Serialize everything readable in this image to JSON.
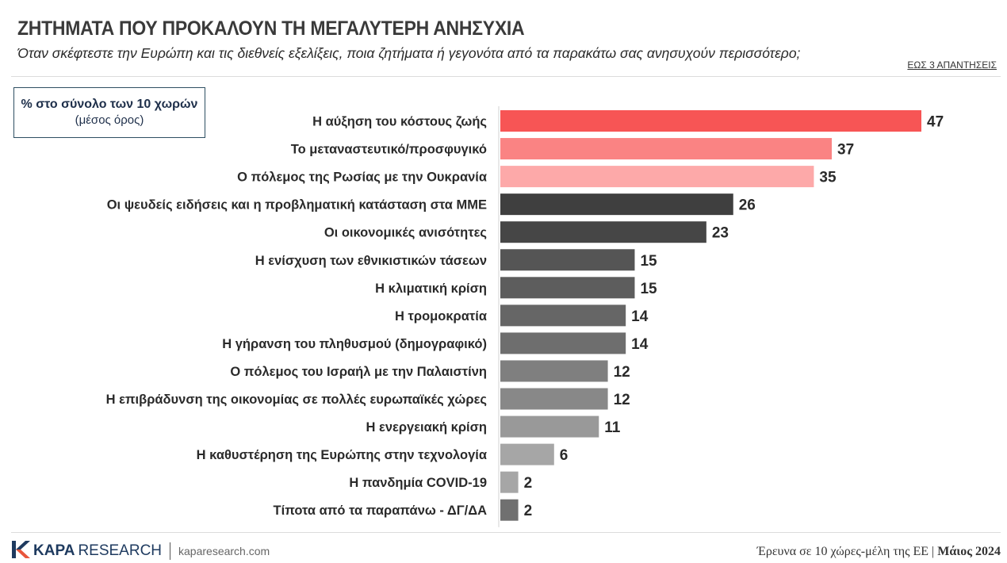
{
  "header": {
    "title": "ΖΗΤΗΜΑΤΑ ΠΟΥ ΠΡΟΚΑΛΟΥΝ ΤΗ ΜΕΓΑΛΥΤΕΡΗ ΑΝΗΣΥΧΙΑ",
    "subtitle": "Όταν σκέφτεστε την Ευρώπη και τις διεθνείς εξελίξεις, ποια ζητήματα ή γεγονότα από τα παρακάτω σας ανησυχούν περισσότερο;",
    "note": "ΕΩΣ 3 ΑΠΑΝΤΗΣΕΙΣ"
  },
  "legend": {
    "main": "% στο σύνολο των 10 χωρών",
    "sub": "(μέσος όρος)"
  },
  "chart_data": {
    "type": "bar",
    "orientation": "horizontal",
    "categories": [
      "Η αύξηση του κόστους ζωής",
      "Το μεταναστευτικό/προσφυγικό",
      "Ο πόλεμος της Ρωσίας με την Ουκρανία",
      "Οι ψευδείς ειδήσεις και η προβληματική κατάσταση στα ΜΜΕ",
      "Οι οικονομικές ανισότητες",
      "Η ενίσχυση των εθνικιστικών τάσεων",
      "Η κλιματική κρίση",
      "Η τρομοκρατία",
      "Η γήρανση του πληθυσμού (δημογραφικό)",
      "Ο πόλεμος του Ισραήλ με την Παλαιστίνη",
      "Η επιβράδυνση της οικονομίας σε πολλές ευρωπαϊκές χώρες",
      "Η ενεργειακή κρίση",
      "Η καθυστέρηση της Ευρώπης στην τεχνολογία",
      "Η πανδημία COVID-19",
      "Τίποτα από τα παραπάνω - ΔΓ/ΔΑ"
    ],
    "values": [
      47,
      37,
      35,
      26,
      23,
      15,
      15,
      14,
      14,
      12,
      12,
      11,
      6,
      2,
      2
    ],
    "colors": [
      "#f75555",
      "#fa8383",
      "#fda9a9",
      "#3f3f3f",
      "#464646",
      "#555555",
      "#5d5d5d",
      "#666666",
      "#6e6e6e",
      "#7f7f7f",
      "#888888",
      "#999999",
      "#a6a6a6",
      "#a6a6a6",
      "#707070"
    ],
    "xlim": [
      0,
      47
    ],
    "grid": false,
    "legend_position": "top-left"
  },
  "footer": {
    "brand_strong": "KAPA",
    "brand_light": "RESEARCH",
    "website": "kaparesearch.com",
    "survey_text": "Έρευνα σε 10 χώρες-μέλη της ΕΕ |",
    "date": "Μάιος 2024"
  }
}
